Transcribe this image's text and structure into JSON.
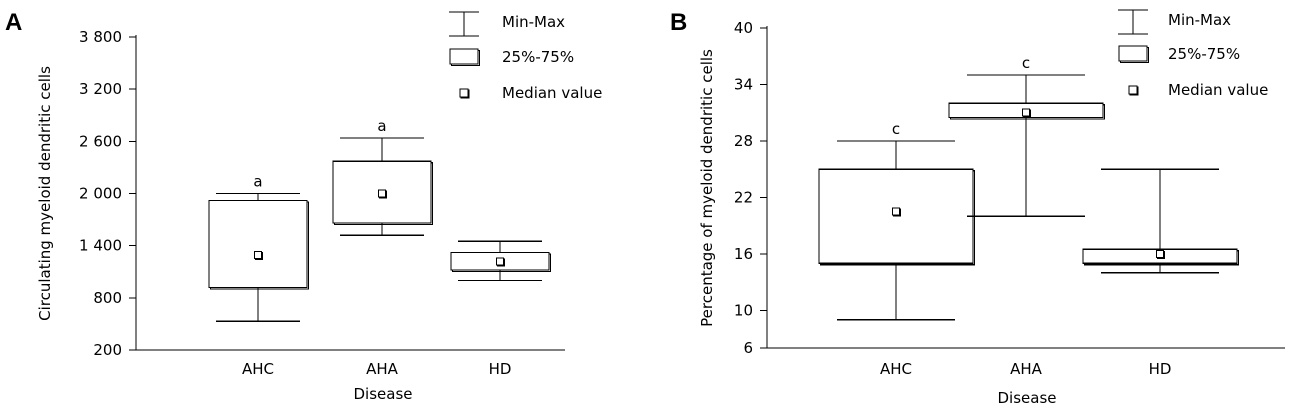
{
  "chart_data": [
    {
      "panel": "A",
      "type": "box",
      "title": "",
      "xlabel": "Disease",
      "ylabel": "Circulating myeloid dendritic cells",
      "ylim": [
        200,
        3800
      ],
      "yticks": [
        200,
        800,
        1400,
        2000,
        2600,
        3200,
        3800
      ],
      "ytick_labels": [
        "200",
        "800",
        "1 400",
        "2 000",
        "2 600",
        "3 200",
        "3 800"
      ],
      "categories": [
        "AHC",
        "AHA",
        "HD"
      ],
      "boxes": [
        {
          "category": "AHC",
          "min": 530,
          "q1": 920,
          "median": 1290,
          "q3": 1920,
          "max": 2000,
          "annotation": "a"
        },
        {
          "category": "AHA",
          "min": 1520,
          "q1": 1660,
          "median": 2000,
          "q3": 2370,
          "max": 2640,
          "annotation": "a"
        },
        {
          "category": "HD",
          "min": 1000,
          "q1": 1120,
          "median": 1220,
          "q3": 1320,
          "max": 1450,
          "annotation": ""
        }
      ],
      "legend": [
        "Min-Max",
        "25%-75%",
        "Median value"
      ],
      "legend_position": "top-right"
    },
    {
      "panel": "B",
      "type": "box",
      "title": "",
      "xlabel": "Disease",
      "ylabel": "Percentage of myeloid dendritic cells",
      "ylim": [
        6,
        40
      ],
      "yticks": [
        6,
        10,
        16,
        22,
        28,
        34,
        40
      ],
      "ytick_labels": [
        "6",
        "10",
        "16",
        "22",
        "28",
        "34",
        "40"
      ],
      "categories": [
        "AHC",
        "AHA",
        "HD"
      ],
      "boxes": [
        {
          "category": "AHC",
          "min": 9,
          "q1": 15,
          "median": 20.5,
          "q3": 25,
          "max": 28,
          "annotation": "c"
        },
        {
          "category": "AHA",
          "min": 20,
          "q1": 30.5,
          "median": 31,
          "q3": 32,
          "max": 35,
          "annotation": "c"
        },
        {
          "category": "HD",
          "min": 14,
          "q1": 15,
          "median": 16,
          "q3": 16.5,
          "max": 25,
          "annotation": ""
        }
      ],
      "legend": [
        "Min-Max",
        "25%-75%",
        "Median value"
      ],
      "legend_position": "top-right"
    }
  ]
}
